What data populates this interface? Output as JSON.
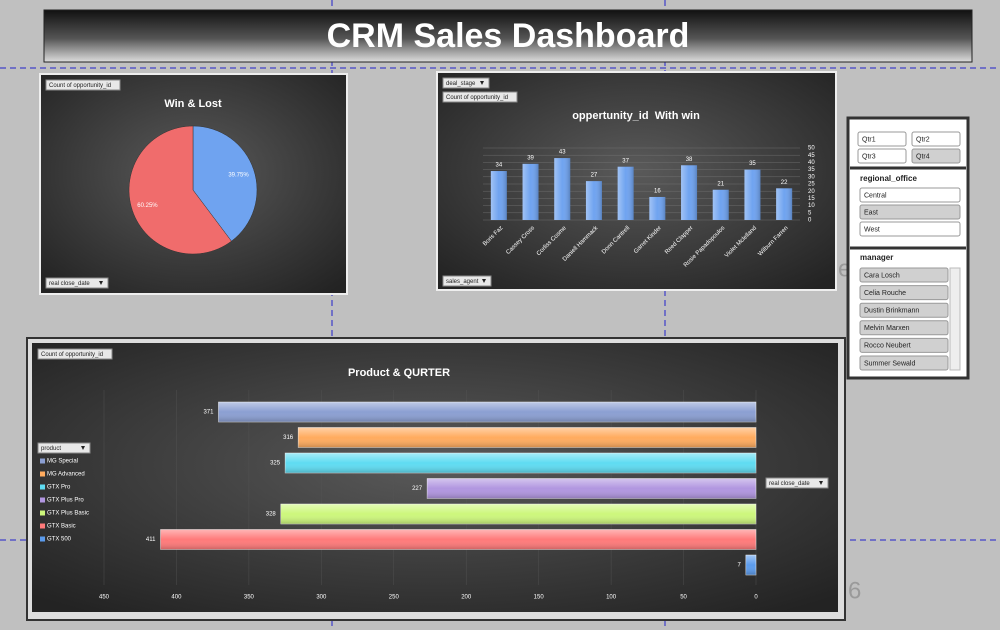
{
  "header": {
    "title": "CRM Sales Dashboard"
  },
  "chart_data": [
    {
      "type": "pie",
      "title": "Win & Lost",
      "values": [
        39.75,
        60.25
      ],
      "value_labels": [
        "39.75%",
        "60.25%"
      ],
      "colors": [
        "#6fa3f0",
        "#f06c6c"
      ],
      "filters": [
        "Count of opportunity_id",
        "real close_date"
      ]
    },
    {
      "type": "bar",
      "title": "oppertunity_id  With win",
      "categories": [
        "Boris Faz",
        "Cassey Cross",
        "Corliss Cosme",
        "Daniell Hammack",
        "Donn Cantrell",
        "Garret Kinder",
        "Reed Clapper",
        "Rosie Papadopoulos",
        "Violet Mclelland",
        "Wilburn Farren"
      ],
      "values": [
        34,
        39,
        43,
        27,
        37,
        16,
        38,
        21,
        35,
        22
      ],
      "color": "#6fa3f0",
      "ylim": [
        0,
        50
      ],
      "yticks": [
        0,
        5,
        10,
        15,
        20,
        25,
        30,
        35,
        40,
        45,
        50
      ],
      "grid": true,
      "filters": [
        "deal_stage",
        "Count of opportunity_id",
        "sales_agent"
      ]
    },
    {
      "type": "hbar",
      "title": "Product & QURTER",
      "legend_title": "product",
      "series": [
        {
          "name": "MG Special",
          "color": "#8b9fd2",
          "values": [
            371
          ]
        },
        {
          "name": "MG Advanced",
          "color": "#ffab5e",
          "values": [
            316
          ]
        },
        {
          "name": "GTX Pro",
          "color": "#5fdcf2",
          "values": [
            325
          ]
        },
        {
          "name": "GTX Plus Pro",
          "color": "#b196e0",
          "values": [
            227
          ]
        },
        {
          "name": "GTX Plus Basic",
          "color": "#cdf77c",
          "values": [
            328
          ]
        },
        {
          "name": "GTX Basic",
          "color": "#ff7a7a",
          "values": [
            411
          ]
        },
        {
          "name": "GTX 500",
          "color": "#5b9bec",
          "values": [
            7
          ]
        }
      ],
      "xlim": [
        450,
        0
      ],
      "xticks": [
        450,
        400,
        350,
        300,
        250,
        200,
        150,
        100,
        50,
        0
      ],
      "filters": [
        "Count of opportunity_id",
        "real close_date"
      ]
    }
  ],
  "slicers": {
    "quarter": {
      "items": [
        "Qtr1",
        "Qtr2",
        "Qtr3",
        "Qtr4"
      ]
    },
    "regional_office": {
      "title": "regional_office",
      "items": [
        "Central",
        "East",
        "West"
      ]
    },
    "manager": {
      "title": "manager",
      "items": [
        "Cara Losch",
        "Celia Rouche",
        "Dustin Brinkmann",
        "Melvin Marxen",
        "Rocco Neubert",
        "Summer Sewald"
      ]
    }
  },
  "watermarks": [
    "e",
    "e 6"
  ]
}
